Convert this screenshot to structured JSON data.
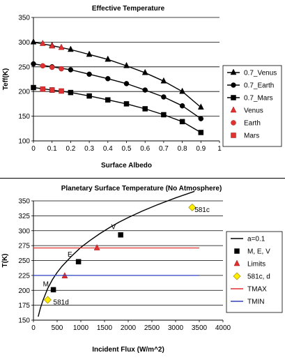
{
  "chart_data": [
    {
      "type": "line",
      "title": "Effective Temperature",
      "xlabel": "Surface Albedo",
      "ylabel": "Teff(K)",
      "xlim": [
        0,
        1
      ],
      "ylim": [
        100,
        350
      ],
      "xticks": [
        "0",
        "0.1",
        "0.2",
        "0.3",
        "0.4",
        "0.5",
        "0.6",
        "0.7",
        "0.8",
        "0.9",
        "1"
      ],
      "yticks": [
        "100",
        "150",
        "200",
        "250",
        "300",
        "350"
      ],
      "grid": "horizontal",
      "legend_position": "right",
      "series": [
        {
          "name": "0.7_Venus",
          "marker": "triangle",
          "color": "#000000",
          "line": true,
          "x": [
            0,
            0.1,
            0.2,
            0.3,
            0.4,
            0.5,
            0.6,
            0.7,
            0.8,
            0.9
          ],
          "y": [
            300,
            293,
            285,
            275,
            265,
            252,
            238,
            221,
            200,
            168
          ]
        },
        {
          "name": "0.7_Earth",
          "marker": "circle",
          "color": "#000000",
          "line": true,
          "x": [
            0,
            0.1,
            0.2,
            0.3,
            0.4,
            0.5,
            0.6,
            0.7,
            0.8,
            0.9
          ],
          "y": [
            256,
            250,
            244,
            235,
            226,
            216,
            203,
            189,
            171,
            145
          ]
        },
        {
          "name": "0.7_Mars",
          "marker": "square",
          "color": "#000000",
          "line": true,
          "x": [
            0,
            0.1,
            0.2,
            0.3,
            0.4,
            0.5,
            0.6,
            0.7,
            0.8,
            0.9
          ],
          "y": [
            208,
            203,
            198,
            191,
            183,
            175,
            165,
            153,
            139,
            117
          ]
        },
        {
          "name": "Venus",
          "marker": "triangle",
          "color": "#e03030",
          "line": false,
          "x": [
            0.05,
            0.1,
            0.15
          ],
          "y": [
            297,
            292,
            289
          ]
        },
        {
          "name": "Earth",
          "marker": "circle",
          "color": "#e03030",
          "line": false,
          "x": [
            0.05,
            0.1,
            0.15
          ],
          "y": [
            252,
            249,
            246
          ]
        },
        {
          "name": "Mars",
          "marker": "square",
          "color": "#e03030",
          "line": false,
          "x": [
            0.05,
            0.1,
            0.15
          ],
          "y": [
            205,
            203,
            201
          ]
        }
      ]
    },
    {
      "type": "line",
      "title": "Planetary Surface Temperature (No Atmosphere)",
      "xlabel": "Incident Flux (W/m^2)",
      "ylabel": "T(K)",
      "xlim": [
        0,
        4000
      ],
      "ylim": [
        150,
        350
      ],
      "xticks": [
        "0",
        "500",
        "1000",
        "1500",
        "2000",
        "2500",
        "3000",
        "3500",
        "4000"
      ],
      "yticks": [
        "150",
        "175",
        "200",
        "225",
        "250",
        "275",
        "300",
        "325",
        "350"
      ],
      "grid": "horizontal",
      "legend_position": "right",
      "series": [
        {
          "name": "a=0.1",
          "marker": "none",
          "color": "#000000",
          "line": true,
          "x": [
            100,
            150,
            200,
            300,
            400,
            500,
            600,
            800,
            1000,
            1200,
            1400,
            1600,
            1800,
            2000,
            2300,
            2600,
            3000,
            3400
          ],
          "y": [
            156,
            171,
            183,
            203,
            218,
            230,
            240,
            257,
            272,
            284,
            295,
            305,
            314,
            322,
            333,
            343,
            355,
            366
          ]
        },
        {
          "name": "M, E, V",
          "marker": "square",
          "color": "#000000",
          "line": false,
          "x": [
            420,
            950,
            1840
          ],
          "y": [
            201,
            248,
            293
          ]
        },
        {
          "name": "Limits",
          "marker": "triangle",
          "color": "#e03030",
          "line": false,
          "x": [
            660,
            1340
          ],
          "y": [
            224,
            271
          ]
        },
        {
          "name": "581c, d",
          "marker": "diamond",
          "color": "#ffee00",
          "line": false,
          "x": [
            300,
            3350
          ],
          "y": [
            184,
            339
          ]
        },
        {
          "name": "TMAX",
          "marker": "none",
          "color": "#e03030",
          "line": true,
          "x": [
            0,
            3500
          ],
          "y": [
            271,
            271
          ]
        },
        {
          "name": "TMIN",
          "marker": "none",
          "color": "#3040c0",
          "line": true,
          "x": [
            0,
            3500
          ],
          "y": [
            225,
            225
          ]
        }
      ],
      "annotations": [
        {
          "text": "581c",
          "x": 3400,
          "y": 335
        },
        {
          "text": "V",
          "x": 1640,
          "y": 306
        },
        {
          "text": "E",
          "x": 720,
          "y": 260
        },
        {
          "text": "M",
          "x": 200,
          "y": 210
        },
        {
          "text": "581d",
          "x": 420,
          "y": 180
        }
      ]
    }
  ]
}
